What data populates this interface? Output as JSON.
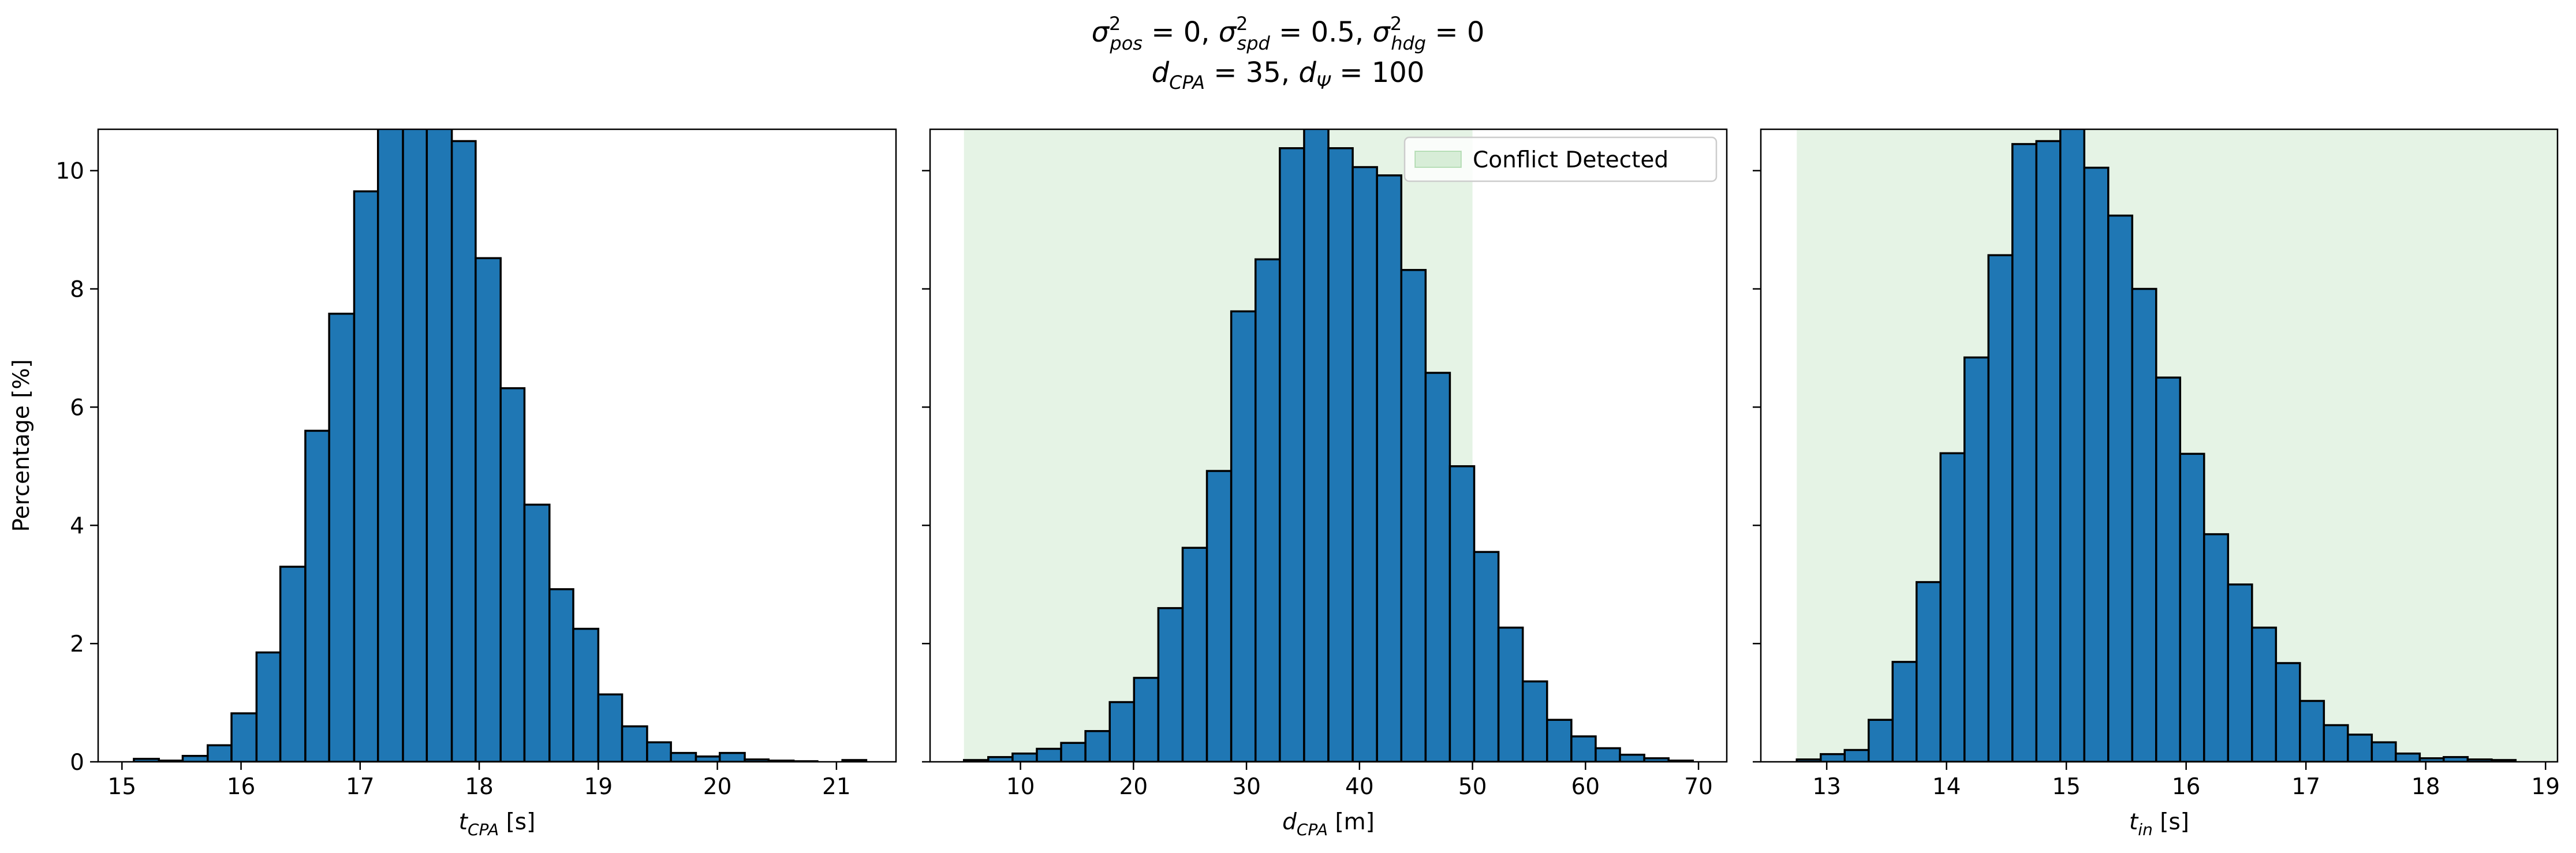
{
  "figure": {
    "title_line1": [
      {
        "base": "σ",
        "sup": "2",
        "sub": "pos",
        "rest": " = 0, "
      },
      {
        "base": "σ",
        "sup": "2",
        "sub": "spd",
        "rest": " = 0.5, "
      },
      {
        "base": "σ",
        "sup": "2",
        "sub": "hdg",
        "rest": " = 0"
      }
    ],
    "title_line2": [
      {
        "base": "d",
        "sub": "CPA",
        "rest": " = 35, "
      },
      {
        "base": "d",
        "sub": "Ψ",
        "rest": " = 100"
      }
    ]
  },
  "chart_data": [
    {
      "type": "bar",
      "subtype": "histogram",
      "xlabel": {
        "base": "t",
        "sub": "CPA",
        "unit": " [s]"
      },
      "ylabel": "Percentage [%]",
      "xlim": [
        14.8,
        21.5
      ],
      "ylim": [
        0,
        10.7
      ],
      "xticks": [
        15,
        16,
        17,
        18,
        19,
        20,
        21
      ],
      "yticks": [
        0,
        2,
        4,
        6,
        8,
        10
      ],
      "show_ytick_labels": true,
      "bar_color": "#1f77b4",
      "edge_color": "#000000",
      "bin_edges": [
        15.1,
        15.31,
        15.51,
        15.72,
        15.92,
        16.13,
        16.33,
        16.54,
        16.74,
        16.95,
        17.15,
        17.36,
        17.56,
        17.77,
        17.97,
        18.18,
        18.38,
        18.59,
        18.79,
        19.0,
        19.2,
        19.41,
        19.61,
        19.82,
        20.02,
        20.23,
        20.43,
        20.64,
        20.84,
        21.05,
        21.25
      ],
      "values": [
        0.05,
        0.02,
        0.1,
        0.28,
        0.82,
        1.85,
        3.3,
        5.6,
        7.58,
        9.65,
        10.8,
        11.3,
        11.0,
        10.5,
        8.52,
        6.32,
        4.35,
        2.92,
        2.25,
        1.14,
        0.6,
        0.33,
        0.15,
        0.09,
        0.15,
        0.04,
        0.02,
        0.01,
        0.0,
        0.03
      ],
      "grid": false,
      "legend": null
    },
    {
      "type": "bar",
      "subtype": "histogram",
      "xlabel": {
        "base": "d",
        "sub": "CPA",
        "unit": " [m]"
      },
      "xlim": [
        2.0,
        72.5
      ],
      "ylim": [
        0,
        10.7
      ],
      "xticks": [
        10,
        20,
        30,
        40,
        50,
        60,
        70
      ],
      "yticks": [
        0,
        2,
        4,
        6,
        8,
        10
      ],
      "show_ytick_labels": false,
      "bar_color": "#1f77b4",
      "edge_color": "#000000",
      "bin_edges": [
        5.0,
        7.15,
        9.3,
        11.45,
        13.6,
        15.75,
        17.9,
        20.05,
        22.2,
        24.35,
        26.5,
        28.65,
        30.8,
        32.95,
        35.1,
        37.25,
        39.4,
        41.55,
        43.7,
        45.85,
        48.0,
        50.15,
        52.3,
        54.45,
        56.6,
        58.75,
        60.9,
        63.05,
        65.2,
        67.35,
        69.5
      ],
      "values": [
        0.03,
        0.08,
        0.14,
        0.22,
        0.32,
        0.52,
        1.01,
        1.42,
        2.6,
        3.62,
        4.92,
        7.62,
        8.5,
        10.38,
        10.95,
        10.38,
        10.06,
        9.92,
        8.32,
        6.58,
        5.0,
        3.55,
        2.27,
        1.36,
        0.71,
        0.43,
        0.23,
        0.12,
        0.06,
        0.02
      ],
      "shaded_region": {
        "x_start": 5.0,
        "x_end": 50.0,
        "color": "#2ca02c",
        "opacity": 0.12
      },
      "legend": {
        "label": "Conflict Detected",
        "placement": "top-right"
      },
      "grid": false
    },
    {
      "type": "bar",
      "subtype": "histogram",
      "xlabel": {
        "base": "t",
        "sub": "in",
        "unit": " [s]"
      },
      "xlim": [
        12.45,
        19.1
      ],
      "ylim": [
        0,
        10.7
      ],
      "xticks": [
        13,
        14,
        15,
        16,
        17,
        18,
        19
      ],
      "yticks": [
        0,
        2,
        4,
        6,
        8,
        10
      ],
      "show_ytick_labels": false,
      "bar_color": "#1f77b4",
      "edge_color": "#000000",
      "bin_edges": [
        12.75,
        12.95,
        13.15,
        13.35,
        13.55,
        13.75,
        13.95,
        14.15,
        14.35,
        14.55,
        14.75,
        14.95,
        15.15,
        15.35,
        15.55,
        15.75,
        15.95,
        16.15,
        16.35,
        16.55,
        16.75,
        16.95,
        17.15,
        17.35,
        17.55,
        17.75,
        17.95,
        18.15,
        18.35,
        18.55,
        18.75
      ],
      "values": [
        0.04,
        0.13,
        0.2,
        0.71,
        1.69,
        3.04,
        5.22,
        6.84,
        8.57,
        10.45,
        10.5,
        10.8,
        10.05,
        9.24,
        8.0,
        6.5,
        5.21,
        3.85,
        3.0,
        2.27,
        1.67,
        1.03,
        0.62,
        0.46,
        0.33,
        0.14,
        0.06,
        0.08,
        0.04,
        0.03
      ],
      "shaded_region": {
        "x_start": 12.75,
        "x_end": 19.1,
        "color": "#2ca02c",
        "opacity": 0.12
      },
      "grid": false,
      "legend": null
    }
  ]
}
